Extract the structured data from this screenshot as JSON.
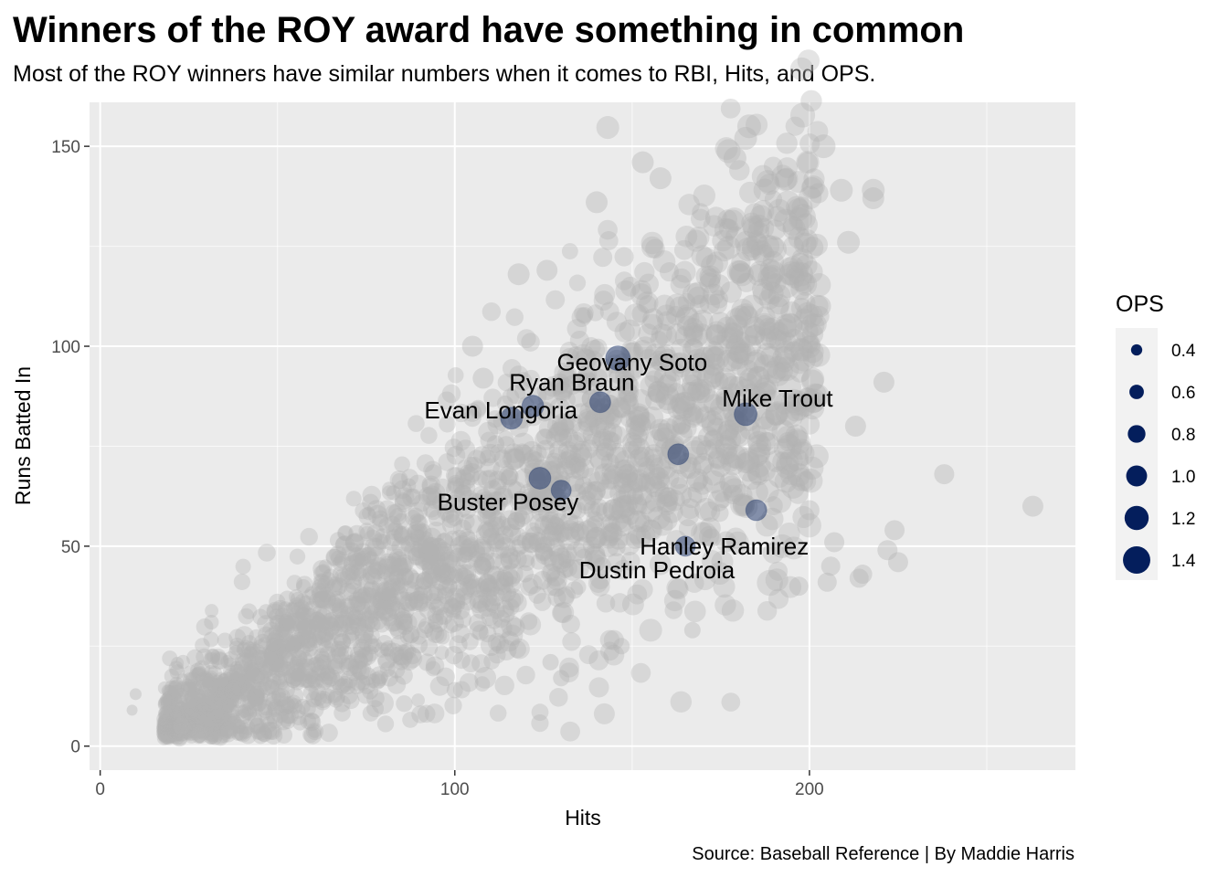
{
  "chart_data": {
    "type": "scatter",
    "title": "Winners of the ROY award have something in common",
    "subtitle": "Most of the ROY winners have similar numbers when it comes to RBI, Hits, and OPS.",
    "xlabel": "Hits",
    "ylabel": "Runs Batted In",
    "caption": "Source: Baseball Reference | By Maddie Harris",
    "xlim": [
      -3,
      275
    ],
    "ylim": [
      -6,
      161
    ],
    "x_ticks": [
      0,
      100,
      200
    ],
    "y_ticks": [
      0,
      50,
      100,
      150
    ],
    "x_minor_ticks": [
      50,
      150,
      250
    ],
    "y_minor_ticks": [
      25,
      75,
      125
    ],
    "grid": true,
    "colors": {
      "background_panel": "#ebebeb",
      "grid_major": "#ffffff",
      "all_players": "#b3b3b3",
      "roy_winners": "#041e5c",
      "legend_key_bg": "#f2f2f2"
    },
    "size_legend": {
      "title": "OPS",
      "placement": "right",
      "values": [
        0.4,
        0.6,
        0.8,
        1.0,
        1.2,
        1.4
      ],
      "labels": [
        "0.4",
        "0.6",
        "0.8",
        "1.0",
        "1.2",
        "1.4"
      ]
    },
    "series": [
      {
        "name": "All players",
        "style": "background",
        "points": [
          {
            "x": 9,
            "y": 9,
            "ops": 0.3
          },
          {
            "x": 10,
            "y": 13,
            "ops": 0.35
          },
          {
            "x": 263,
            "y": 60,
            "ops": 0.85
          },
          {
            "x": 238,
            "y": 68,
            "ops": 0.8
          },
          {
            "x": 225,
            "y": 46,
            "ops": 0.8
          },
          {
            "x": 224,
            "y": 54,
            "ops": 0.8
          },
          {
            "x": 222,
            "y": 49,
            "ops": 0.8
          },
          {
            "x": 221,
            "y": 91,
            "ops": 0.85
          },
          {
            "x": 218,
            "y": 139,
            "ops": 0.95
          },
          {
            "x": 218,
            "y": 137,
            "ops": 0.9
          },
          {
            "x": 215,
            "y": 43,
            "ops": 0.75
          },
          {
            "x": 214,
            "y": 42,
            "ops": 0.75
          },
          {
            "x": 213,
            "y": 80,
            "ops": 0.85
          },
          {
            "x": 211,
            "y": 126,
            "ops": 0.95
          },
          {
            "x": 209,
            "y": 139,
            "ops": 0.95
          },
          {
            "x": 207,
            "y": 51,
            "ops": 0.8
          },
          {
            "x": 206,
            "y": 45,
            "ops": 0.75
          },
          {
            "x": 205,
            "y": 41,
            "ops": 0.75
          },
          {
            "x": 204,
            "y": 150,
            "ops": 1.0
          },
          {
            "x": 203,
            "y": 110,
            "ops": 0.9
          },
          {
            "x": 200,
            "y": 59,
            "ops": 0.8
          },
          {
            "x": 197,
            "y": 40,
            "ops": 0.75
          },
          {
            "x": 183,
            "y": 155,
            "ops": 1.0
          },
          {
            "x": 182,
            "y": 152,
            "ops": 0.95
          },
          {
            "x": 179,
            "y": 147,
            "ops": 0.95
          },
          {
            "x": 153,
            "y": 146,
            "ops": 0.9
          },
          {
            "x": 158,
            "y": 142,
            "ops": 0.9
          },
          {
            "x": 140,
            "y": 136,
            "ops": 0.9
          },
          {
            "x": 118,
            "y": 118,
            "ops": 0.9
          },
          {
            "x": 126,
            "y": 119,
            "ops": 0.85
          },
          {
            "x": 105,
            "y": 100,
            "ops": 0.85
          },
          {
            "x": 108,
            "y": 92,
            "ops": 0.85
          },
          {
            "x": 130,
            "y": 17,
            "ops": 0.6
          },
          {
            "x": 100,
            "y": 14,
            "ops": 0.6
          },
          {
            "x": 167,
            "y": 29,
            "ops": 0.6
          },
          {
            "x": 147,
            "y": 25,
            "ops": 0.6
          },
          {
            "x": 127,
            "y": 21,
            "ops": 0.6
          },
          {
            "x": 28,
            "y": 3,
            "ops": 0.6
          },
          {
            "x": 23,
            "y": 5,
            "ops": 0.6
          }
        ]
      },
      {
        "name": "ROY winners",
        "style": "highlight",
        "points": [
          {
            "x": 146,
            "y": 97,
            "ops": 1.05,
            "label": "Geovany Soto"
          },
          {
            "x": 122,
            "y": 85,
            "ops": 0.9,
            "label": "Ryan Braun"
          },
          {
            "x": 141,
            "y": 86,
            "ops": 0.85
          },
          {
            "x": 116,
            "y": 82,
            "ops": 0.9,
            "label": "Evan Longoria"
          },
          {
            "x": 182,
            "y": 83,
            "ops": 0.95,
            "label": "Mike Trout"
          },
          {
            "x": 163,
            "y": 73,
            "ops": 0.85
          },
          {
            "x": 124,
            "y": 67,
            "ops": 0.9,
            "label": "Buster Posey"
          },
          {
            "x": 130,
            "y": 64,
            "ops": 0.8
          },
          {
            "x": 185,
            "y": 59,
            "ops": 0.85
          },
          {
            "x": 165,
            "y": 50,
            "ops": 0.8,
            "label": "Hanley Ramirez"
          }
        ]
      }
    ],
    "annotations": [
      {
        "text": "Geovany Soto",
        "x": 150,
        "y": 96
      },
      {
        "text": "Ryan Braun",
        "x": 133,
        "y": 91
      },
      {
        "text": "Evan Longoria",
        "x": 113,
        "y": 84
      },
      {
        "text": "Mike Trout",
        "x": 191,
        "y": 87
      },
      {
        "text": "Buster Posey",
        "x": 115,
        "y": 61
      },
      {
        "text": "Hanley Ramirez",
        "x": 176,
        "y": 50
      },
      {
        "text": "Dustin Pedroia",
        "x": 157,
        "y": 44
      }
    ]
  }
}
